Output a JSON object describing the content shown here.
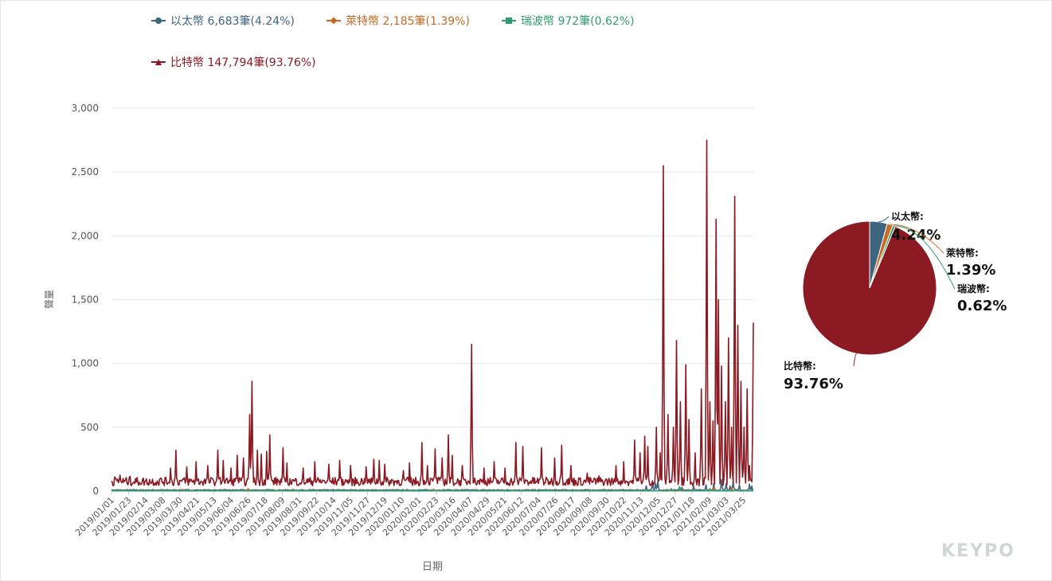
{
  "chart_data": [
    {
      "type": "line",
      "xlabel": "日期",
      "ylabel": "聲量",
      "ylim": [
        0,
        3000
      ],
      "yticks": [
        0,
        500,
        1000,
        1500,
        2000,
        2500,
        3000
      ],
      "ytick_labels": [
        "0",
        "500",
        "1,000",
        "1,500",
        "2,000",
        "2,500",
        "3,000"
      ],
      "x_start": "2019-01-01",
      "x_end": "2021-04-07",
      "xtick_labels": [
        "2019/01/01",
        "2019/01/23",
        "2019/02/14",
        "2019/03/08",
        "2019/03/30",
        "2019/04/21",
        "2019/05/13",
        "2019/06/04",
        "2019/06/26",
        "2019/07/18",
        "2019/08/09",
        "2019/08/31",
        "2019/09/22",
        "2019/10/14",
        "2019/11/05",
        "2019/11/27",
        "2019/12/19",
        "2020/01/10",
        "2020/02/01",
        "2020/02/23",
        "2020/03/16",
        "2020/04/07",
        "2020/04/29",
        "2020/05/21",
        "2020/06/12",
        "2020/07/04",
        "2020/07/26",
        "2020/08/17",
        "2020/09/08",
        "2020/09/30",
        "2020/10/22",
        "2020/11/13",
        "2020/12/05",
        "2020/12/27",
        "2021/01/18",
        "2021/02/09",
        "2021/03/03",
        "2021/03/25"
      ],
      "grid": true,
      "legend_position": "top",
      "series": [
        {
          "name": "以太幣",
          "legend_text": "以太幣 6,683筆(4.24%)",
          "color": "#3d6580",
          "marker": "circle",
          "baseline": 8,
          "spikes": [
            [
              "2020-11-20",
              40
            ],
            [
              "2020-11-28",
              70
            ],
            [
              "2020-12-02",
              60
            ],
            [
              "2020-12-05",
              80
            ],
            [
              "2021-01-05",
              30
            ],
            [
              "2021-01-20",
              40
            ],
            [
              "2021-02-05",
              50
            ],
            [
              "2021-02-15",
              60
            ],
            [
              "2021-02-25",
              90
            ],
            [
              "2021-03-03",
              60
            ],
            [
              "2021-03-08",
              40
            ],
            [
              "2021-03-12",
              80
            ],
            [
              "2021-03-20",
              50
            ],
            [
              "2021-04-02",
              55
            ],
            [
              "2021-04-05",
              40
            ]
          ]
        },
        {
          "name": "萊特幣",
          "legend_text": "萊特幣 2,185筆(1.39%)",
          "color": "#c86a24",
          "marker": "diamond",
          "baseline": 3,
          "spikes": [
            [
              "2019-04-02",
              15
            ],
            [
              "2019-06-26",
              20
            ],
            [
              "2020-02-20",
              15
            ],
            [
              "2021-02-15",
              30
            ],
            [
              "2021-03-10",
              25
            ]
          ]
        },
        {
          "name": "瑞波幣",
          "legend_text": "瑞波幣 972筆(0.62%)",
          "color": "#2f9e6e",
          "marker": "square",
          "baseline": 2,
          "spikes": [
            [
              "2020-12-22",
              20
            ],
            [
              "2021-01-02",
              35
            ],
            [
              "2021-02-10",
              20
            ],
            [
              "2021-03-15",
              15
            ]
          ]
        },
        {
          "name": "比特幣",
          "legend_text": "比特幣 147,794筆(93.76%)",
          "color": "#8b1a22",
          "marker": "triangle",
          "baseline": 75,
          "spikes": [
            [
              "2019-01-05",
              110
            ],
            [
              "2019-01-12",
              125
            ],
            [
              "2019-01-25",
              115
            ],
            [
              "2019-02-15",
              95
            ],
            [
              "2019-03-05",
              100
            ],
            [
              "2019-03-18",
              180
            ],
            [
              "2019-03-25",
              320
            ],
            [
              "2019-04-08",
              190
            ],
            [
              "2019-04-20",
              230
            ],
            [
              "2019-05-05",
              200
            ],
            [
              "2019-05-18",
              320
            ],
            [
              "2019-05-25",
              240
            ],
            [
              "2019-06-04",
              180
            ],
            [
              "2019-06-12",
              280
            ],
            [
              "2019-06-20",
              260
            ],
            [
              "2019-06-28",
              600
            ],
            [
              "2019-07-01",
              860
            ],
            [
              "2019-07-08",
              320
            ],
            [
              "2019-07-13",
              290
            ],
            [
              "2019-07-20",
              310
            ],
            [
              "2019-07-24",
              440
            ],
            [
              "2019-08-10",
              340
            ],
            [
              "2019-08-15",
              220
            ],
            [
              "2019-09-05",
              180
            ],
            [
              "2019-09-20",
              230
            ],
            [
              "2019-10-08",
              210
            ],
            [
              "2019-10-22",
              240
            ],
            [
              "2019-11-05",
              200
            ],
            [
              "2019-11-25",
              190
            ],
            [
              "2019-12-05",
              250
            ],
            [
              "2019-12-12",
              240
            ],
            [
              "2019-12-19",
              210
            ],
            [
              "2020-01-12",
              160
            ],
            [
              "2020-01-20",
              220
            ],
            [
              "2020-02-05",
              380
            ],
            [
              "2020-02-12",
              200
            ],
            [
              "2020-02-22",
              330
            ],
            [
              "2020-03-02",
              260
            ],
            [
              "2020-03-10",
              440
            ],
            [
              "2020-03-15",
              280
            ],
            [
              "2020-03-28",
              200
            ],
            [
              "2020-04-09",
              1150
            ],
            [
              "2020-04-25",
              180
            ],
            [
              "2020-05-08",
              230
            ],
            [
              "2020-05-22",
              180
            ],
            [
              "2020-06-05",
              380
            ],
            [
              "2020-06-14",
              350
            ],
            [
              "2020-07-08",
              340
            ],
            [
              "2020-07-25",
              260
            ],
            [
              "2020-08-03",
              360
            ],
            [
              "2020-08-15",
              200
            ],
            [
              "2020-09-05",
              140
            ],
            [
              "2020-09-20",
              120
            ],
            [
              "2020-10-12",
              200
            ],
            [
              "2020-10-22",
              230
            ],
            [
              "2020-11-05",
              400
            ],
            [
              "2020-11-12",
              300
            ],
            [
              "2020-11-18",
              430
            ],
            [
              "2020-11-22",
              350
            ],
            [
              "2020-12-03",
              500
            ],
            [
              "2020-12-08",
              300
            ],
            [
              "2020-12-12",
              2550
            ],
            [
              "2020-12-18",
              600
            ],
            [
              "2020-12-25",
              500
            ],
            [
              "2020-12-29",
              1180
            ],
            [
              "2021-01-03",
              700
            ],
            [
              "2021-01-10",
              990
            ],
            [
              "2021-01-14",
              560
            ],
            [
              "2021-01-22",
              300
            ],
            [
              "2021-01-30",
              800
            ],
            [
              "2021-02-06",
              2750
            ],
            [
              "2021-02-10",
              700
            ],
            [
              "2021-02-14",
              550
            ],
            [
              "2021-02-18",
              2130
            ],
            [
              "2021-02-21",
              1500
            ],
            [
              "2021-02-25",
              980
            ],
            [
              "2021-03-02",
              700
            ],
            [
              "2021-03-06",
              1200
            ],
            [
              "2021-03-10",
              500
            ],
            [
              "2021-03-14",
              2310
            ],
            [
              "2021-03-18",
              1300
            ],
            [
              "2021-03-22",
              860
            ],
            [
              "2021-03-26",
              500
            ],
            [
              "2021-03-30",
              800
            ],
            [
              "2021-04-02",
              200
            ],
            [
              "2021-04-07",
              1320
            ]
          ]
        }
      ]
    },
    {
      "type": "pie",
      "slices": [
        {
          "name": "以太幣",
          "label": "以太幣:",
          "percent_text": "4.24%",
          "value": 4.24,
          "color": "#3d6580"
        },
        {
          "name": "萊特幣",
          "label": "萊特幣:",
          "percent_text": "1.39%",
          "value": 1.39,
          "color": "#c86a24"
        },
        {
          "name": "瑞波幣",
          "label": "瑞波幣:",
          "percent_text": "0.62%",
          "value": 0.62,
          "color": "#2f9e6e"
        },
        {
          "name": "比特幣",
          "label": "比特幣:",
          "percent_text": "93.76%",
          "value": 93.76,
          "color": "#8b1a22"
        }
      ]
    }
  ],
  "watermark": "KEYPO"
}
